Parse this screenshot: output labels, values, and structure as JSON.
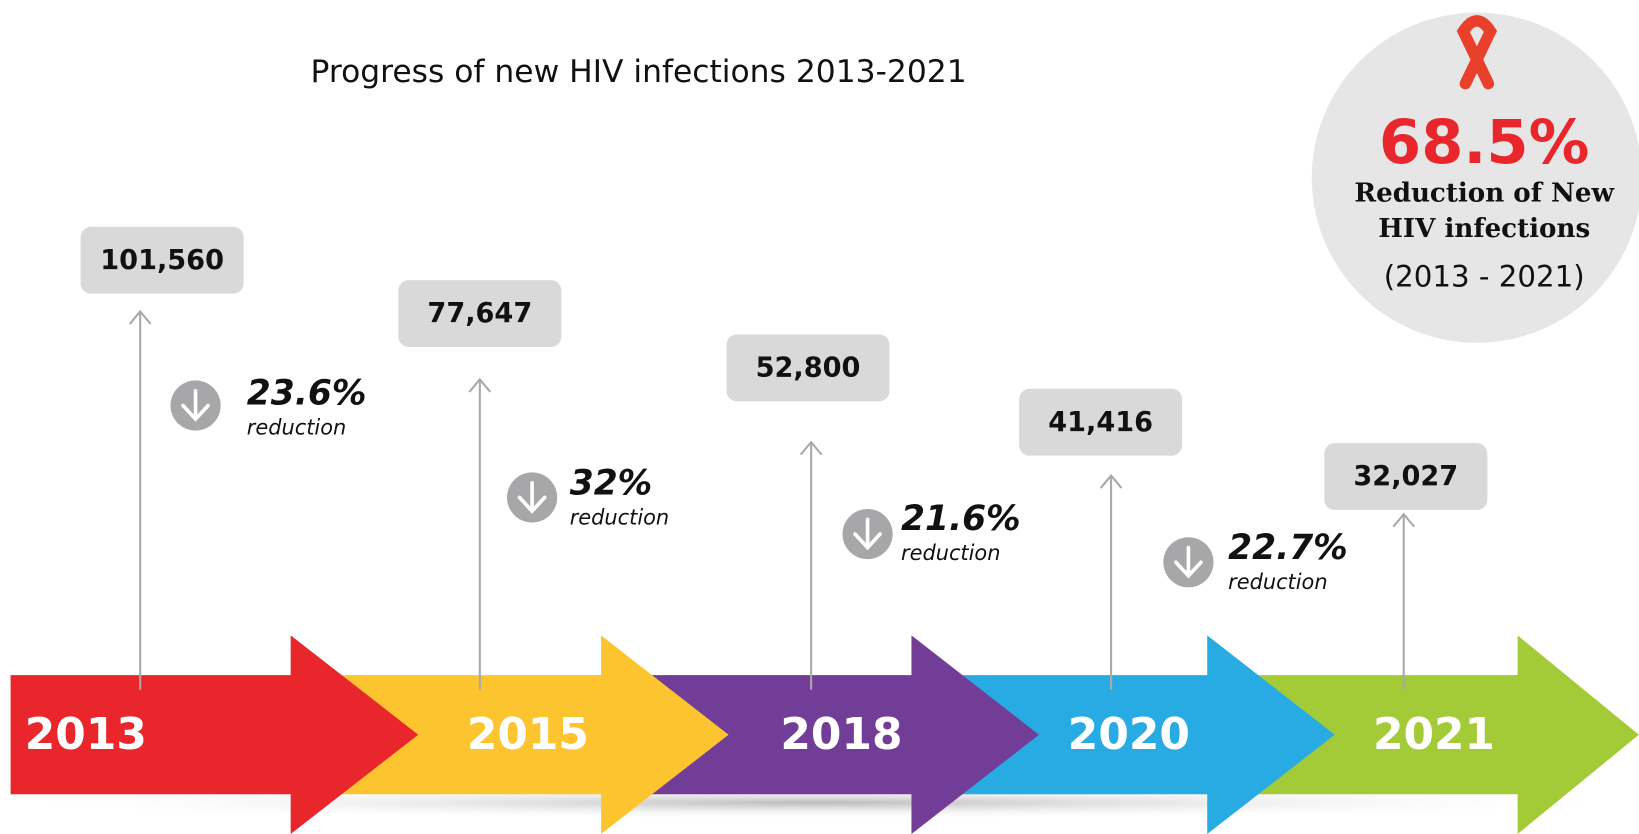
{
  "title": "Progress of new HIV infections 2013-2021",
  "badge": {
    "percent": "68.5%",
    "label_lines": [
      "Reduction of New",
      "HIV infections"
    ],
    "range": "(2013 - 2021)"
  },
  "milestones": [
    {
      "year": "2013",
      "count": "101,560",
      "color": "#e8262b"
    },
    {
      "year": "2015",
      "count": "77,647",
      "color": "#fcc52f"
    },
    {
      "year": "2018",
      "count": "52,800",
      "color": "#723d97"
    },
    {
      "year": "2020",
      "count": "41,416",
      "color": "#28abe2"
    },
    {
      "year": "2021",
      "count": "32,027",
      "color": "#a3cb38"
    }
  ],
  "reductions": [
    {
      "percent": "23.6%",
      "label": "reduction"
    },
    {
      "percent": "32%",
      "label": "reduction"
    },
    {
      "percent": "21.6%",
      "label": "reduction"
    },
    {
      "percent": "22.7%",
      "label": "reduction"
    }
  ]
}
